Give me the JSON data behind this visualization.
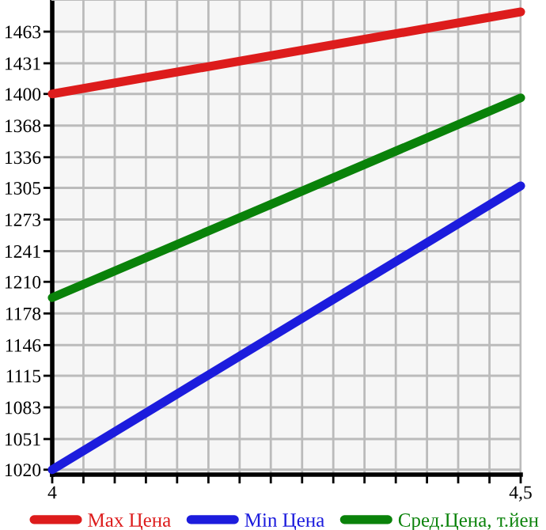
{
  "chart_data": {
    "type": "line",
    "x": [
      4,
      4.5
    ],
    "series": [
      {
        "name": "Max Цена",
        "color": "#dd1c1c",
        "values": [
          1400,
          1483
        ]
      },
      {
        "name": "Min Цена",
        "color": "#1c1cdd",
        "values": [
          1020,
          1307
        ]
      },
      {
        "name": "Сред.Цена, т.йен",
        "color": "#0a820a",
        "values": [
          1194,
          1396
        ]
      }
    ],
    "xlim": [
      4,
      4.5
    ],
    "xticks": [
      4,
      {
        "value": 4.0333,
        "label": null
      },
      {
        "value": 4.0667,
        "label": null
      },
      {
        "value": 4.1,
        "label": null
      },
      {
        "value": 4.1333,
        "label": null
      },
      {
        "value": 4.1667,
        "label": null
      },
      {
        "value": 4.2,
        "label": null
      },
      {
        "value": 4.2333,
        "label": null
      },
      {
        "value": 4.2667,
        "label": null
      },
      {
        "value": 4.3,
        "label": null
      },
      {
        "value": 4.3333,
        "label": null
      },
      {
        "value": 4.3667,
        "label": null
      },
      {
        "value": 4.4,
        "label": null
      },
      {
        "value": 4.4333,
        "label": null
      },
      {
        "value": 4.4667,
        "label": null
      },
      {
        "value": 4.5,
        "label": "4,5"
      }
    ],
    "ylim": [
      1015,
      1495
    ],
    "yticks": [
      1020,
      1051,
      1083,
      1115,
      1146,
      1178,
      1210,
      1241,
      1273,
      1305,
      1336,
      1368,
      1400,
      1431,
      1463
    ],
    "grid": true,
    "legend": "bottom",
    "marker": "none",
    "line_style": "solid"
  }
}
